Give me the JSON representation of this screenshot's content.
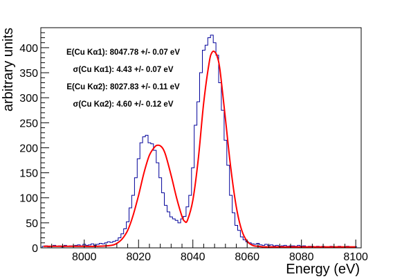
{
  "chart_data": {
    "type": "line",
    "xlabel": "Energy (eV)",
    "ylabel": "arbitrary units",
    "xlim": [
      7984,
      8102
    ],
    "ylim": [
      0,
      440
    ],
    "x_ticks": [
      8000,
      8020,
      8040,
      8060,
      8080,
      8100
    ],
    "x_tick_labels": [
      "8000",
      "8020",
      "8040",
      "8060",
      "8080",
      "8100"
    ],
    "y_ticks": [
      0,
      50,
      100,
      150,
      200,
      250,
      300,
      350,
      400
    ],
    "y_tick_labels": [
      "0",
      "50",
      "100",
      "150",
      "200",
      "250",
      "300",
      "350",
      "400"
    ],
    "series": [
      {
        "style": "histogram",
        "color": "#000099",
        "bin_width": 1,
        "x": [
          7985,
          7986,
          7987,
          7988,
          7989,
          7990,
          7991,
          7992,
          7993,
          7994,
          7995,
          7996,
          7997,
          7998,
          7999,
          8000,
          8001,
          8002,
          8003,
          8004,
          8005,
          8006,
          8007,
          8008,
          8009,
          8010,
          8011,
          8012,
          8013,
          8014,
          8015,
          8016,
          8017,
          8018,
          8019,
          8020,
          8021,
          8022,
          8023,
          8024,
          8025,
          8026,
          8027,
          8028,
          8029,
          8030,
          8031,
          8032,
          8033,
          8034,
          8035,
          8036,
          8037,
          8038,
          8039,
          8040,
          8041,
          8042,
          8043,
          8044,
          8045,
          8046,
          8047,
          8048,
          8049,
          8050,
          8051,
          8052,
          8053,
          8054,
          8055,
          8056,
          8057,
          8058,
          8059,
          8060,
          8061,
          8062,
          8063,
          8064,
          8065,
          8066,
          8067,
          8068,
          8069,
          8070,
          8071,
          8072,
          8073,
          8074,
          8075,
          8076,
          8077,
          8078,
          8079,
          8080,
          8081,
          8082,
          8083,
          8084,
          8085,
          8086,
          8087,
          8088,
          8089,
          8090,
          8091,
          8092,
          8093,
          8094,
          8095,
          8096,
          8097,
          8098,
          8099,
          8100
        ],
        "values": [
          3,
          4,
          2,
          3,
          5,
          3,
          4,
          2,
          5,
          3,
          4,
          4,
          5,
          6,
          4,
          7,
          5,
          6,
          8,
          5,
          7,
          9,
          8,
          10,
          12,
          11,
          13,
          15,
          20,
          28,
          38,
          52,
          80,
          105,
          140,
          178,
          210,
          222,
          225,
          210,
          208,
          195,
          170,
          140,
          110,
          85,
          72,
          62,
          58,
          55,
          50,
          58,
          63,
          82,
          105,
          160,
          245,
          292,
          350,
          395,
          405,
          420,
          425,
          410,
          385,
          330,
          275,
          215,
          165,
          105,
          70,
          45,
          35,
          22,
          16,
          12,
          10,
          8,
          7,
          9,
          6,
          5,
          7,
          5,
          6,
          4,
          5,
          3,
          4,
          5,
          3,
          4,
          4,
          3,
          5,
          3,
          4,
          2,
          3,
          3,
          2,
          3,
          2,
          3,
          2,
          2,
          3,
          2,
          2,
          3,
          2,
          2,
          3,
          2,
          2,
          2
        ]
      },
      {
        "style": "fit",
        "color": "#ff0000",
        "x": [
          7985,
          7990,
          7995,
          8000,
          8005,
          8010,
          8012,
          8014,
          8016,
          8018,
          8020,
          8022,
          8024,
          8026,
          8027,
          8028,
          8029,
          8030,
          8032,
          8034,
          8036,
          8037,
          8038,
          8040,
          8042,
          8044,
          8046,
          8047,
          8048,
          8049,
          8050,
          8052,
          8054,
          8056,
          8058,
          8060,
          8062,
          8064,
          8066,
          8070,
          8080,
          8090,
          8100
        ],
        "values": [
          3,
          3,
          3,
          3,
          3,
          5,
          9,
          18,
          35,
          65,
          105,
          150,
          185,
          202,
          205,
          204,
          198,
          185,
          145,
          100,
          63,
          53,
          55,
          95,
          178,
          290,
          370,
          390,
          392,
          382,
          355,
          258,
          158,
          82,
          35,
          13,
          5,
          3,
          2,
          2,
          2,
          2,
          2
        ]
      }
    ],
    "annotations": [
      "E(Cu Kα1): 8047.78 +/- 0.07 eV",
      "σ(Cu Kα1): 4.43 +/- 0.07 eV",
      "E(Cu Kα2): 8027.83 +/- 0.11 eV",
      "σ(Cu Kα2): 4.60 +/- 0.12 eV"
    ],
    "grid": false,
    "legend": "none"
  }
}
